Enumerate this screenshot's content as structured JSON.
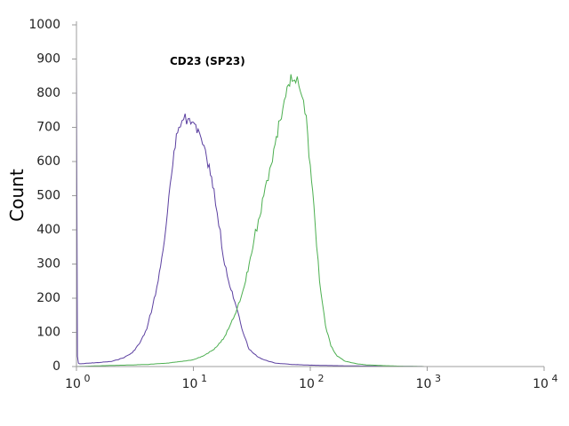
{
  "chart_data": {
    "type": "line",
    "title": "CD23 (SP23)",
    "xlabel": "",
    "ylabel": "Count",
    "xscale": "log",
    "xlim": [
      1,
      10000
    ],
    "ylim": [
      0,
      1000
    ],
    "grid": false,
    "legend": "none",
    "x_ticks": [
      {
        "value": 1,
        "base": "10",
        "exp": "0"
      },
      {
        "value": 10,
        "base": "10",
        "exp": "1"
      },
      {
        "value": 100,
        "base": "10",
        "exp": "2"
      },
      {
        "value": 1000,
        "base": "10",
        "exp": "3"
      },
      {
        "value": 10000,
        "base": "10",
        "exp": "4"
      }
    ],
    "y_ticks": [
      {
        "value": 0,
        "label": "0"
      },
      {
        "value": 100,
        "label": "100"
      },
      {
        "value": 200,
        "label": "200"
      },
      {
        "value": 300,
        "label": "300"
      },
      {
        "value": 400,
        "label": "400"
      },
      {
        "value": 500,
        "label": "500"
      },
      {
        "value": 600,
        "label": "600"
      },
      {
        "value": 700,
        "label": "700"
      },
      {
        "value": 800,
        "label": "800"
      },
      {
        "value": 900,
        "label": "900"
      },
      {
        "value": 1000,
        "label": "1000"
      }
    ],
    "series": [
      {
        "color": "#5b3fa0",
        "x": [
          1.0,
          1.02,
          1.04,
          1.06,
          1.1,
          1.3,
          1.6,
          2.0,
          2.5,
          3.0,
          3.5,
          4.0,
          4.5,
          5.0,
          5.5,
          6.0,
          6.5,
          7.0,
          7.5,
          8.0,
          8.5,
          9.0,
          9.5,
          10.0,
          11.0,
          12.0,
          13.0,
          14.0,
          15.0,
          16.0,
          17.0,
          18.0,
          19.0,
          20.0,
          22.0,
          24.0,
          26.0,
          28.0,
          30.0,
          35.0,
          40.0,
          50.0,
          70.0,
          100.0,
          200.0,
          500.0,
          1000.0,
          10000.0
        ],
        "y": [
          900,
          30,
          10,
          8,
          8,
          10,
          12,
          15,
          25,
          40,
          70,
          110,
          180,
          250,
          340,
          450,
          560,
          640,
          700,
          720,
          740,
          725,
          710,
          715,
          695,
          650,
          610,
          560,
          520,
          450,
          400,
          320,
          290,
          250,
          200,
          160,
          110,
          80,
          50,
          30,
          20,
          10,
          6,
          4,
          2,
          1,
          0,
          0
        ]
      },
      {
        "color": "#4caf50",
        "x": [
          1.0,
          1.5,
          2.5,
          4.0,
          6.0,
          8.0,
          10.0,
          12.0,
          15.0,
          18.0,
          20.0,
          22.0,
          25.0,
          28.0,
          30.0,
          33.0,
          36.0,
          40.0,
          45.0,
          50.0,
          55.0,
          60.0,
          65.0,
          70.0,
          75.0,
          80.0,
          85.0,
          90.0,
          95.0,
          100.0,
          110.0,
          120.0,
          135.0,
          150.0,
          170.0,
          200.0,
          250.0,
          300.0,
          400.0,
          600.0,
          1000.0,
          10000.0
        ],
        "y": [
          0,
          2,
          4,
          6,
          10,
          15,
          20,
          30,
          50,
          80,
          110,
          140,
          190,
          250,
          300,
          370,
          430,
          500,
          580,
          650,
          720,
          780,
          825,
          835,
          830,
          820,
          790,
          740,
          680,
          590,
          420,
          250,
          120,
          60,
          30,
          15,
          8,
          5,
          3,
          1,
          0,
          0
        ]
      }
    ]
  }
}
